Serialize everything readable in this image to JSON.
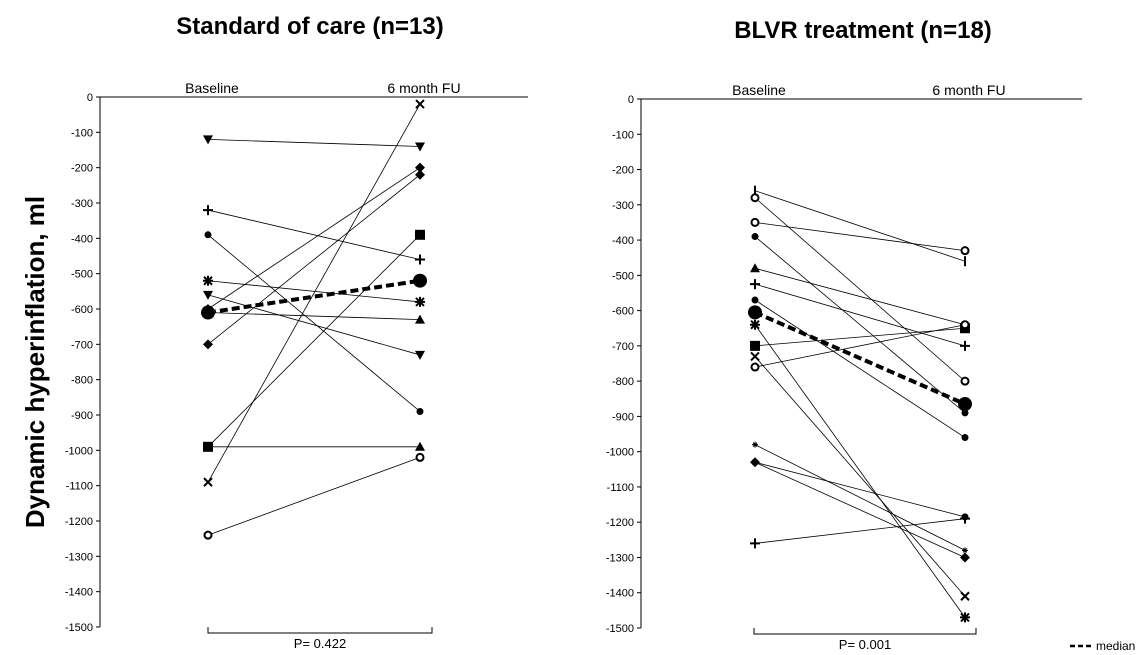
{
  "figure": {
    "ylabel": "Dynamic hyperinflation, ml",
    "legend": {
      "label": "median",
      "style": "dashed"
    }
  },
  "chart_data": [
    {
      "type": "line",
      "title": "Standard of care (n=13)",
      "categories": [
        "Baseline",
        "6 month FU"
      ],
      "ylim": [
        -1500,
        0
      ],
      "yticks": [
        0,
        -100,
        -200,
        -300,
        -400,
        -500,
        -600,
        -700,
        -800,
        -900,
        -1000,
        -1100,
        -1200,
        -1300,
        -1400,
        -1500
      ],
      "p_value": "P= 0.422",
      "series": [
        {
          "values": [
            -120,
            -140
          ],
          "marker": "triangle-down"
        },
        {
          "values": [
            -320,
            -460
          ],
          "marker": "plus"
        },
        {
          "values": [
            -390,
            -890
          ],
          "marker": "circle"
        },
        {
          "values": [
            -520,
            -580
          ],
          "marker": "asterisk"
        },
        {
          "values": [
            -560,
            -730
          ],
          "marker": "triangle-down"
        },
        {
          "values": [
            -600,
            -200
          ],
          "marker": "diamond"
        },
        {
          "values": [
            -610,
            -630
          ],
          "marker": "triangle"
        },
        {
          "values": [
            -700,
            -220
          ],
          "marker": "diamond"
        },
        {
          "values": [
            -990,
            -390
          ],
          "marker": "square"
        },
        {
          "values": [
            -990,
            -990
          ],
          "marker": "triangle"
        },
        {
          "values": [
            -1090,
            -20
          ],
          "marker": "x"
        },
        {
          "values": [
            -1240,
            -1020
          ],
          "marker": "open-circle"
        }
      ],
      "median": {
        "name": "median",
        "values": [
          -610,
          -520
        ]
      }
    },
    {
      "type": "line",
      "title": "BLVR treatment (n=18)",
      "categories": [
        "Baseline",
        "6 month FU"
      ],
      "ylim": [
        -1500,
        0
      ],
      "yticks": [
        0,
        -100,
        -200,
        -300,
        -400,
        -500,
        -600,
        -700,
        -800,
        -900,
        -1000,
        -1100,
        -1200,
        -1300,
        -1400,
        -1500
      ],
      "p_value": "P= 0.001",
      "series": [
        {
          "values": [
            -260,
            -460
          ],
          "marker": "dash"
        },
        {
          "values": [
            -280,
            -800
          ],
          "marker": "open-circle"
        },
        {
          "values": [
            -350,
            -430
          ],
          "marker": "open-circle"
        },
        {
          "values": [
            -390,
            -890
          ],
          "marker": "circle"
        },
        {
          "values": [
            -480,
            -640
          ],
          "marker": "triangle"
        },
        {
          "values": [
            -525,
            -700
          ],
          "marker": "plus"
        },
        {
          "values": [
            -570,
            -960
          ],
          "marker": "circle"
        },
        {
          "values": [
            -640,
            -1470
          ],
          "marker": "asterisk"
        },
        {
          "values": [
            -700,
            -650
          ],
          "marker": "square"
        },
        {
          "values": [
            -730,
            -1410
          ],
          "marker": "x"
        },
        {
          "values": [
            -760,
            -640
          ],
          "marker": "open-circle"
        },
        {
          "values": [
            -980,
            -1280
          ],
          "marker": "star"
        },
        {
          "values": [
            -1030,
            -1300
          ],
          "marker": "diamond"
        },
        {
          "values": [
            -1030,
            -1185
          ],
          "marker": "circle"
        },
        {
          "values": [
            -1260,
            -1190
          ],
          "marker": "plus"
        }
      ],
      "median": {
        "name": "median",
        "values": [
          -605,
          -865
        ]
      }
    }
  ]
}
